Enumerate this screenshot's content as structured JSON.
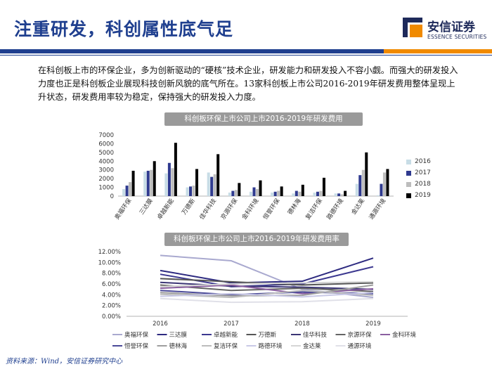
{
  "header": {
    "title": "注重研发，科创属性底气足",
    "logo_cn": "安信证券",
    "logo_en": "ESSENCE SECURITIES"
  },
  "intro_text": "在科创板上市的环保企业，多为创新驱动的“硬核”技术企业，研发能力和研发投入不容小觑。而强大的研发投入力度也正是科创板企业展现科技创新风貌的底气所在。13家科创板上市公司2016-2019年研发费用整体呈现上升状态，研发费用率较为稳定，保持强大的研发投入力度。",
  "colors": {
    "brand_blue": "#1f3f8f",
    "brand_orange": "#f08a00",
    "s2016": "#c8dde6",
    "s2017": "#2f3a8f",
    "s2018": "#bdbdbd",
    "s2019": "#000000"
  },
  "chart_data": [
    {
      "type": "bar",
      "title": "科创板环保上市公司上市2016-2019年研发费用",
      "categories": [
        "奥福环保",
        "三达膜",
        "卓越新能",
        "万德斯",
        "佳华科技",
        "京源环保",
        "金科环境",
        "恒誉环保",
        "德林海",
        "复洁环保",
        "路德环境",
        "金达莱",
        "通源环境"
      ],
      "ylim": [
        0,
        7000
      ],
      "yticks": [
        0,
        1000,
        2000,
        3000,
        4000,
        5000,
        6000,
        7000
      ],
      "series": [
        {
          "name": "2016",
          "values": [
            800,
            2800,
            2600,
            1000,
            2700,
            400,
            500,
            400,
            300,
            400,
            300,
            1400,
            100
          ]
        },
        {
          "name": "2017",
          "values": [
            1200,
            2900,
            3800,
            1100,
            2200,
            600,
            1000,
            500,
            600,
            500,
            300,
            2400,
            1400
          ]
        },
        {
          "name": "2018",
          "values": [
            1600,
            3000,
            3200,
            1200,
            2500,
            700,
            800,
            600,
            500,
            600,
            200,
            3000,
            2700
          ]
        },
        {
          "name": "2019",
          "values": [
            2900,
            4000,
            6100,
            3100,
            4800,
            1500,
            1800,
            1100,
            1300,
            2100,
            600,
            5000,
            3100
          ]
        }
      ]
    },
    {
      "type": "line",
      "title": "科创板环保上市公司上市2016-2019年研发费用率",
      "x": [
        "2016",
        "2017",
        "2018",
        "2019"
      ],
      "ylim": [
        0,
        12
      ],
      "yticks": [
        "0.00%",
        "2.00%",
        "4.00%",
        "6.00%",
        "8.00%",
        "10.00%",
        "12.00%"
      ],
      "series": [
        {
          "name": "奥福环保",
          "color": "#a9a9cf",
          "values": [
            11.3,
            10.3,
            5.0,
            3.5
          ]
        },
        {
          "name": "三达膜",
          "color": "#2d2a80",
          "values": [
            8.5,
            6.2,
            6.5,
            10.8
          ]
        },
        {
          "name": "卓越新能",
          "color": "#3c3890",
          "values": [
            7.8,
            5.5,
            6.0,
            9.2
          ]
        },
        {
          "name": "万德斯",
          "color": "#555555",
          "values": [
            7.0,
            6.4,
            5.8,
            6.2
          ]
        },
        {
          "name": "佳华科技",
          "color": "#3b3575",
          "values": [
            6.3,
            5.6,
            5.4,
            5.0
          ]
        },
        {
          "name": "京源环保",
          "color": "#646464",
          "values": [
            5.8,
            4.8,
            5.2,
            4.6
          ]
        },
        {
          "name": "金科环境",
          "color": "#8a5fa0",
          "values": [
            5.2,
            5.8,
            4.2,
            5.1
          ]
        },
        {
          "name": "恒誉环保",
          "color": "#4b4a99",
          "values": [
            4.8,
            4.0,
            4.5,
            4.2
          ]
        },
        {
          "name": "德林海",
          "color": "#9e9e9e",
          "values": [
            4.4,
            3.8,
            3.9,
            5.8
          ]
        },
        {
          "name": "复洁环保",
          "color": "#bcbcbc",
          "values": [
            4.1,
            3.5,
            4.8,
            3.9
          ]
        },
        {
          "name": "路德环境",
          "color": "#c9c9e6",
          "values": [
            3.7,
            4.2,
            3.6,
            4.4
          ]
        },
        {
          "name": "金达莱",
          "color": "#d6d6d6",
          "values": [
            5.5,
            6.0,
            6.2,
            6.4
          ]
        },
        {
          "name": "通源环境",
          "color": "#e0e0e8",
          "values": [
            3.3,
            2.6,
            2.7,
            3.3
          ]
        }
      ]
    }
  ],
  "source": "资料来源：Wind，安信证券研究中心"
}
